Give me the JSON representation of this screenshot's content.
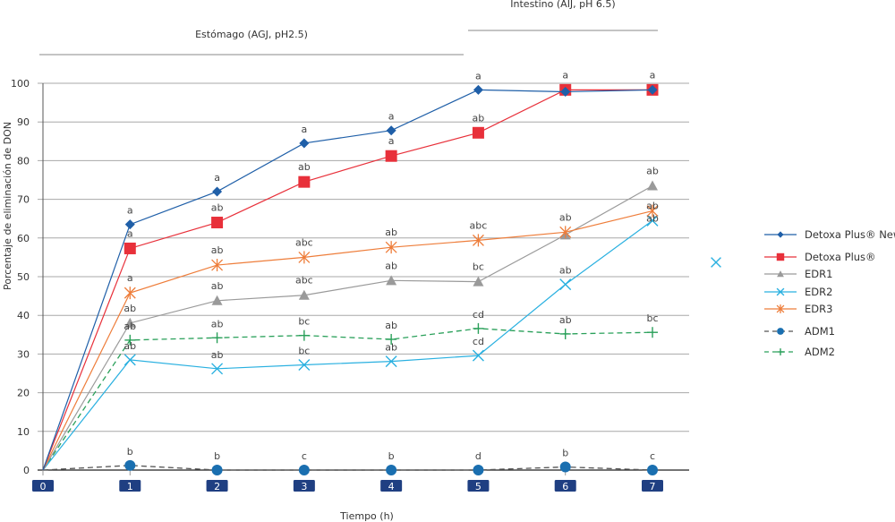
{
  "chart_data": {
    "type": "line",
    "title": "",
    "xlabel": "Tiempo (h)",
    "ylabel": "Porcentaje de eliminación de DON",
    "x": [
      0,
      1,
      2,
      3,
      4,
      5,
      6,
      7
    ],
    "x_tick_labels": [
      "0",
      "1",
      "2",
      "3",
      "4",
      "5",
      "6",
      "7"
    ],
    "y_ticks": [
      0,
      10,
      20,
      30,
      40,
      50,
      60,
      70,
      80,
      90,
      100
    ],
    "ylim": [
      0,
      100
    ],
    "xlim": [
      0,
      7
    ],
    "grid": "horizontal",
    "legend_position": "right",
    "phases": [
      {
        "label": "Estómago (AGJ, pH2.5)",
        "x_range": [
          0,
          5
        ]
      },
      {
        "label": "Intestino (AIJ, pH 6.5)",
        "x_range": [
          5,
          7
        ]
      }
    ],
    "series": [
      {
        "name": "Detoxa Plus® New",
        "color": "#1f5fa8",
        "marker": "diamond",
        "dash": false,
        "values": [
          0,
          63.5,
          72,
          84.5,
          87.8,
          98.3,
          97.8,
          98.3
        ],
        "labels": [
          "",
          "a",
          "a",
          "a",
          "a",
          "a",
          "",
          ""
        ]
      },
      {
        "name": "Detoxa Plus®",
        "color": "#e8303a",
        "marker": "square",
        "dash": false,
        "values": [
          0,
          57.3,
          64,
          74.5,
          81.2,
          87.2,
          98.3,
          98.3
        ],
        "labels": [
          "",
          "a",
          "ab",
          "ab",
          "a",
          "ab",
          "a",
          "a"
        ]
      },
      {
        "name": "EDR1",
        "color": "#9a9a9a",
        "marker": "triangle",
        "dash": false,
        "values": [
          0,
          38,
          43.8,
          45.2,
          49,
          48.7,
          60.8,
          73.5
        ],
        "labels": [
          "",
          "ab",
          "ab",
          "abc",
          "ab",
          "bc",
          "",
          "ab"
        ]
      },
      {
        "name": "EDR2",
        "color": "#29b0e0",
        "marker": "x",
        "dash": false,
        "values": [
          0,
          28.5,
          26.2,
          27.2,
          28.1,
          29.6,
          48,
          64.5
        ],
        "labels": [
          "",
          "ab",
          "ab",
          "bc",
          "ab",
          "cd",
          "ab",
          "ab"
        ]
      },
      {
        "name": "EDR3",
        "color": "#ee7d3a",
        "marker": "star",
        "dash": false,
        "values": [
          0,
          45.8,
          53,
          55,
          57.6,
          59.4,
          61.5,
          67
        ],
        "labels": [
          "",
          "a",
          "ab",
          "abc",
          "ab",
          "abc",
          "ab",
          "ab"
        ]
      },
      {
        "name": "ADM1",
        "color": "#1a6fb0",
        "line_color": "#555555",
        "marker": "circle",
        "dash": true,
        "values": [
          0,
          1.2,
          0,
          0,
          0,
          0,
          0.8,
          0
        ],
        "labels": [
          "",
          "b",
          "b",
          "c",
          "b",
          "d",
          "b",
          "c"
        ]
      },
      {
        "name": "ADM2",
        "color": "#2aa05a",
        "marker": "plus",
        "dash": true,
        "values": [
          0,
          33.6,
          34.2,
          34.8,
          33.8,
          36.6,
          35.2,
          35.6
        ],
        "labels": [
          "",
          "ab",
          "ab",
          "bc",
          "ab",
          "cd",
          "ab",
          "bc"
        ]
      }
    ],
    "stray_marker": {
      "series": "EDR2",
      "marker": "x",
      "color": "#29b0e0"
    }
  }
}
